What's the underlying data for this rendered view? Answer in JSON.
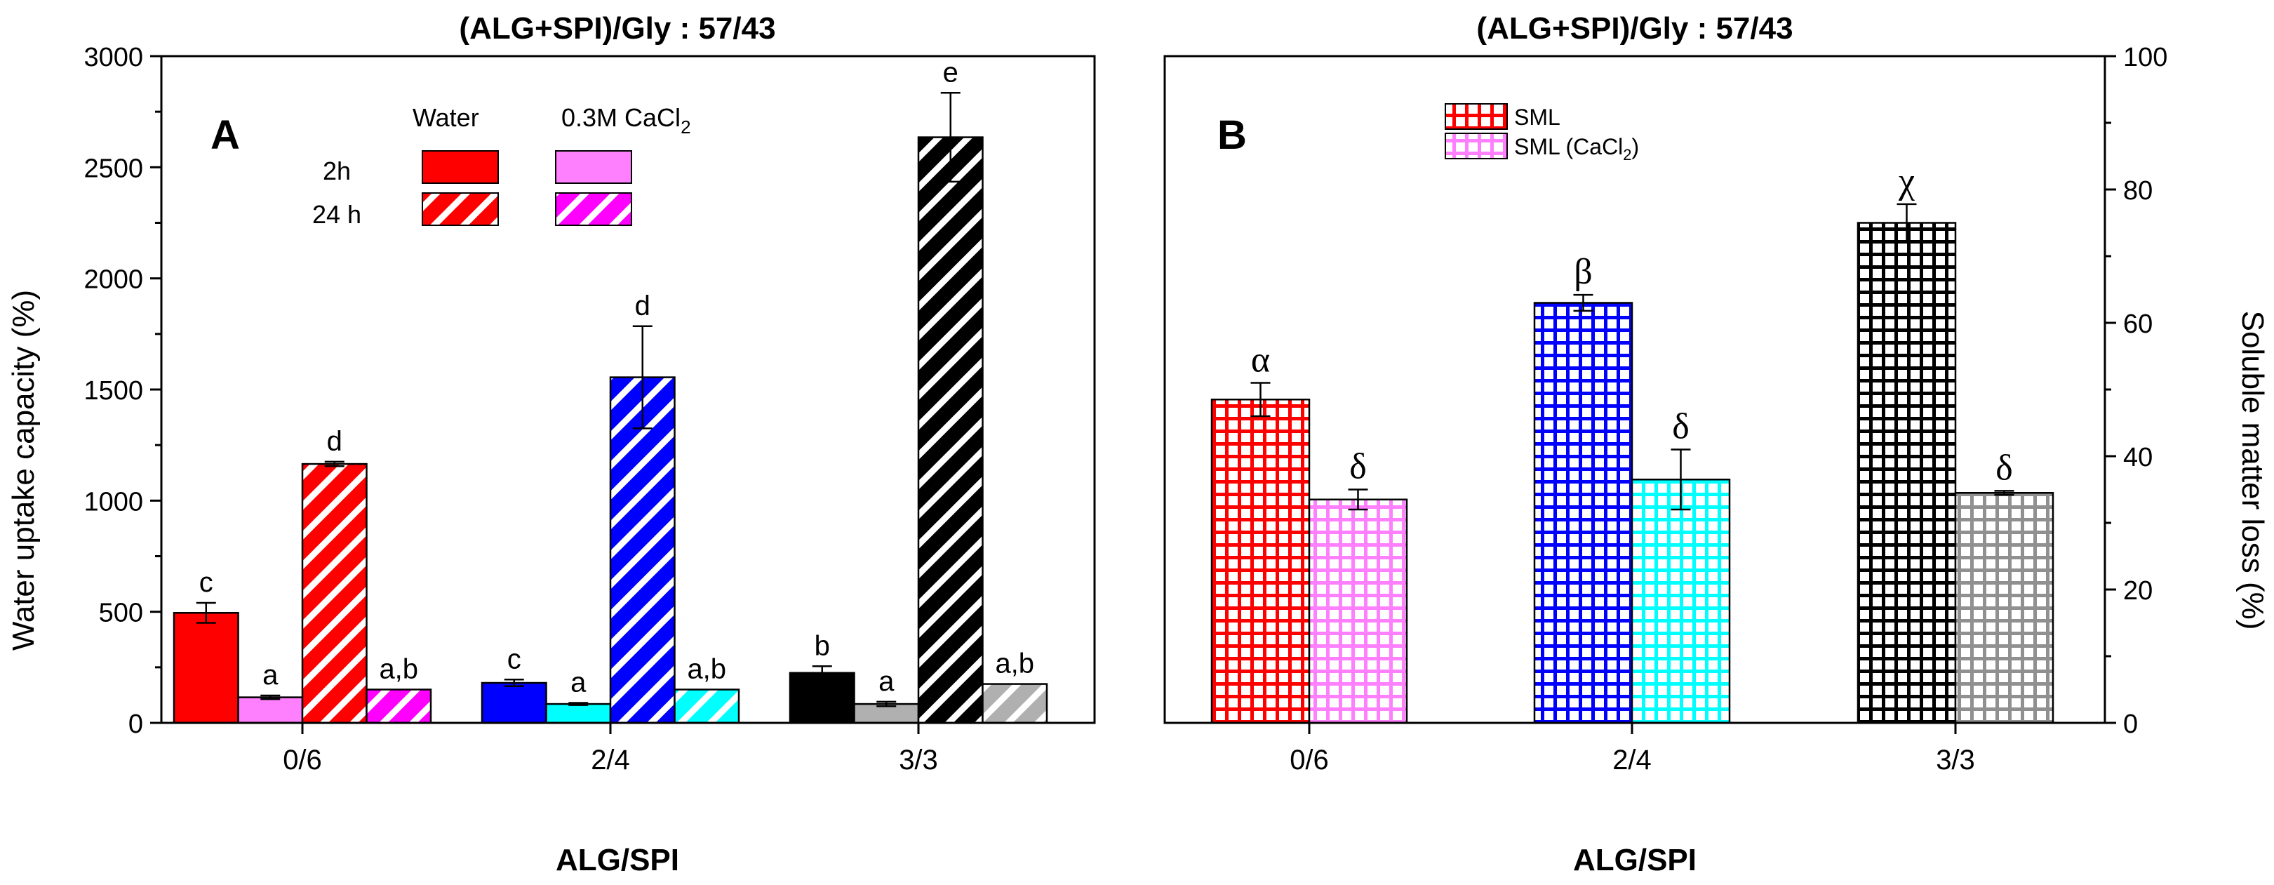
{
  "chart_data": [
    {
      "panel": "A",
      "type": "bar",
      "title": "(ALG+SPI)/Gly : 57/43",
      "xlabel": "ALG/SPI",
      "ylabel": "Water uptake capacity (%)",
      "ylim": [
        0,
        3000
      ],
      "yticks": [
        0,
        500,
        1000,
        1500,
        2000,
        2500,
        3000
      ],
      "categories": [
        "0/6",
        "2/4",
        "3/3"
      ],
      "legend_headers": [
        "Water",
        "0.3M CaCl",
        "2"
      ],
      "legend_rows": [
        "2h",
        "24 h"
      ],
      "legend_placement": "top-center",
      "series": [
        {
          "medium": "Water",
          "time": "2h",
          "pattern": "solid",
          "values": [
            495,
            180,
            225
          ],
          "errors": [
            45,
            15,
            30
          ],
          "letters": [
            "c",
            "c",
            "b"
          ],
          "colors": [
            "#ff0000",
            "#0000ff",
            "#000000"
          ]
        },
        {
          "medium": "0.3M CaCl2",
          "time": "2h",
          "pattern": "solid",
          "values": [
            115,
            85,
            85
          ],
          "errors": [
            8,
            5,
            10
          ],
          "letters": [
            "a",
            "a",
            "a"
          ],
          "colors": [
            "#ff80ff",
            "#00ffff",
            "#b0b0b0"
          ]
        },
        {
          "medium": "Water",
          "time": "24 h",
          "pattern": "diagonal",
          "values": [
            1165,
            1555,
            2635
          ],
          "errors": [
            10,
            230,
            200
          ],
          "letters": [
            "d",
            "d",
            "e"
          ],
          "colors": [
            "#ff0000",
            "#0000ff",
            "#000000"
          ]
        },
        {
          "medium": "0.3M CaCl2",
          "time": "24 h",
          "pattern": "diagonal",
          "values": [
            150,
            150,
            175
          ],
          "errors": [
            0,
            0,
            0
          ],
          "letters": [
            "a,b",
            "a,b",
            "a,b"
          ],
          "colors": [
            "#ff00ff",
            "#00ffff",
            "#b0b0b0"
          ]
        }
      ],
      "legend_colors": {
        "water": "#ff0000",
        "cacl2_2h": "#ff80ff",
        "cacl2_24h": "#ff00ff"
      }
    },
    {
      "panel": "B",
      "type": "bar",
      "title": "(ALG+SPI)/Gly : 57/43",
      "xlabel": "ALG/SPI",
      "ylabel": "Soluble matter loss (%)",
      "ylim": [
        0,
        100
      ],
      "yticks": [
        0,
        20,
        40,
        60,
        80,
        100
      ],
      "y_axis_side": "right",
      "categories": [
        "0/6",
        "2/4",
        "3/3"
      ],
      "legend_entries": [
        "SML",
        "SML (CaCl",
        "2",
        ")"
      ],
      "legend_placement": "top-left",
      "series": [
        {
          "name": "SML",
          "pattern": "grid",
          "values": [
            48.5,
            63,
            75
          ],
          "errors": [
            2.5,
            1.2,
            2.8
          ],
          "letters": [
            "α",
            "β",
            "χ"
          ],
          "colors": [
            "#ff0000",
            "#0000ff",
            "#000000"
          ]
        },
        {
          "name": "SML (CaCl2)",
          "pattern": "grid",
          "values": [
            33.5,
            36.5,
            34.5
          ],
          "errors": [
            1.5,
            4.5,
            0.3
          ],
          "letters": [
            "δ",
            "δ",
            "δ"
          ],
          "colors": [
            "#ff80ff",
            "#00ffff",
            "#909090"
          ]
        }
      ]
    }
  ]
}
